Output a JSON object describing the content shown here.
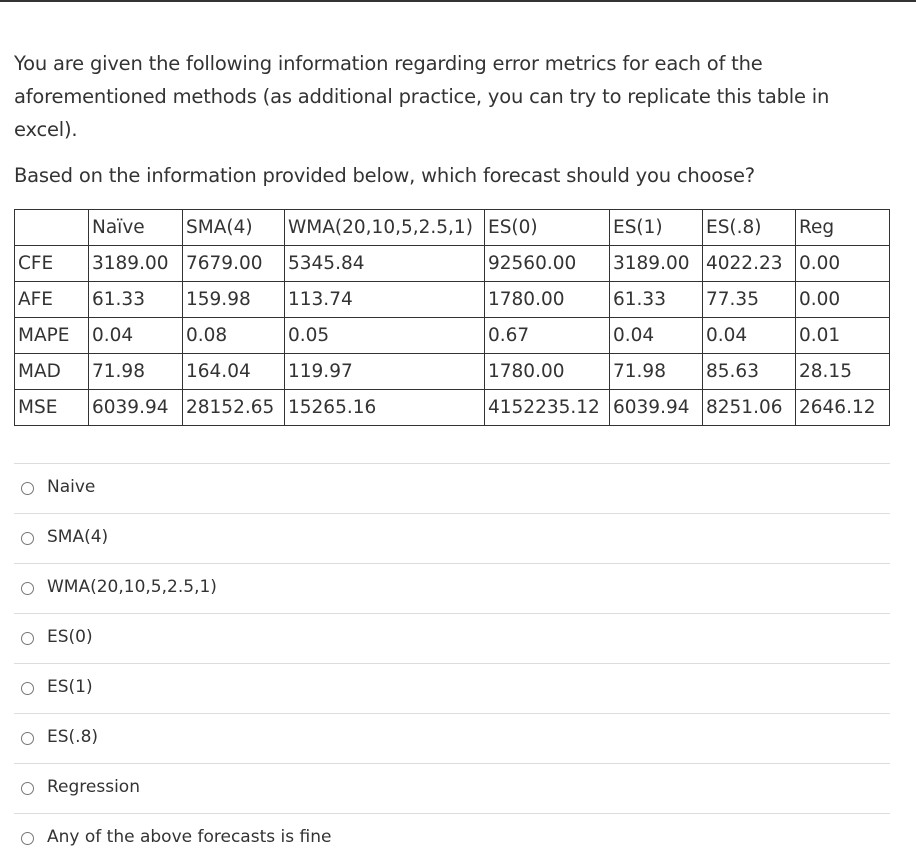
{
  "question": {
    "intro": "You are given the following information regarding error metrics for each of the aforementioned methods (as additional practice, you can try to replicate this table in excel).",
    "prompt": "Based on the information provided below, which forecast should you choose?"
  },
  "table": {
    "columns": [
      "Naïve",
      "SMA(4)",
      "WMA(20,10,5,2.5,1)",
      "ES(0)",
      "ES(1)",
      "ES(.8)",
      "Reg"
    ],
    "rows": [
      {
        "label": "CFE",
        "cells": [
          "3189.00",
          "7679.00",
          "5345.84",
          "92560.00",
          "3189.00",
          "4022.23",
          "0.00"
        ]
      },
      {
        "label": "AFE",
        "cells": [
          "61.33",
          "159.98",
          "113.74",
          "1780.00",
          "61.33",
          "77.35",
          "0.00"
        ]
      },
      {
        "label": "MAPE",
        "cells": [
          "0.04",
          "0.08",
          "0.05",
          "0.67",
          "0.04",
          "0.04",
          "0.01"
        ]
      },
      {
        "label": "MAD",
        "cells": [
          "71.98",
          "164.04",
          "119.97",
          "1780.00",
          "71.98",
          "85.63",
          "28.15"
        ]
      },
      {
        "label": "MSE",
        "cells": [
          "6039.94",
          "28152.65",
          "15265.16",
          "4152235.12",
          "6039.94",
          "8251.06",
          "2646.12"
        ]
      }
    ]
  },
  "options": [
    "Naive",
    "SMA(4)",
    "WMA(20,10,5,2.5,1)",
    "ES(0)",
    "ES(1)",
    "ES(.8)",
    "Regression",
    "Any of the above forecasts is fine"
  ]
}
